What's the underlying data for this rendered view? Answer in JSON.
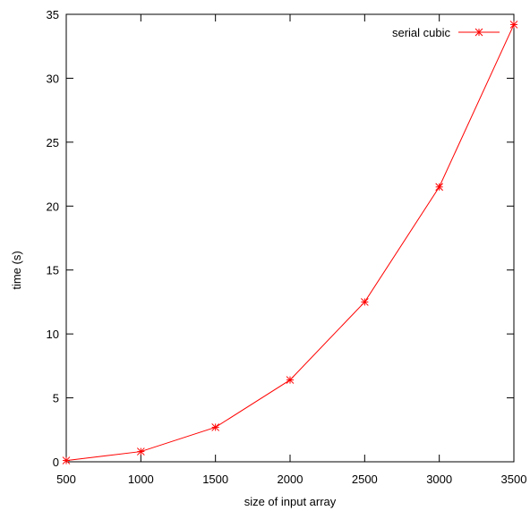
{
  "chart_data": {
    "type": "line",
    "xlabel": "size of input array",
    "ylabel": "time (s)",
    "xlim": [
      500,
      3500
    ],
    "ylim": [
      0,
      35
    ],
    "xticks": [
      500,
      1000,
      1500,
      2000,
      2500,
      3000,
      3500
    ],
    "yticks": [
      0,
      5,
      10,
      15,
      20,
      25,
      30,
      35
    ],
    "grid": false,
    "legend_position": "top-right",
    "series": [
      {
        "name": "serial cubic",
        "color": "#ff0000",
        "marker": "asterisk",
        "x": [
          500,
          1000,
          1500,
          2000,
          2500,
          3000,
          3500
        ],
        "y": [
          0.1,
          0.8,
          2.7,
          6.4,
          12.5,
          21.5,
          34.2
        ]
      }
    ]
  }
}
